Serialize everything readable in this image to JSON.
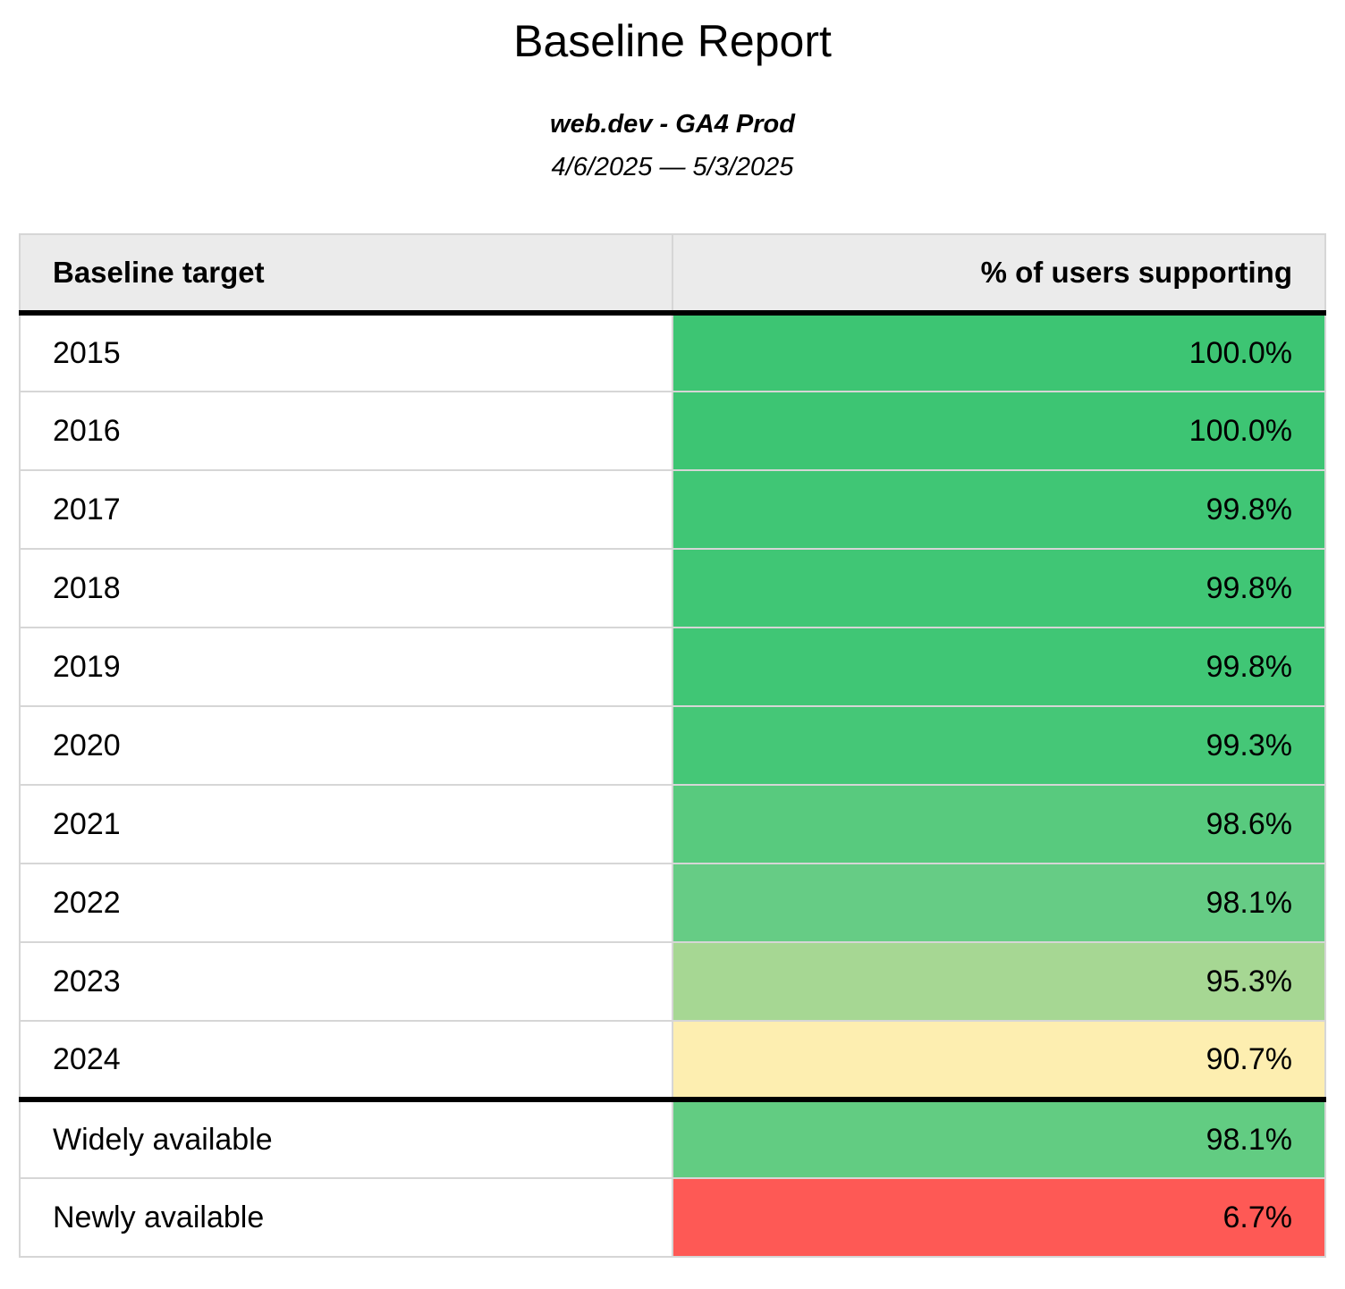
{
  "report": {
    "title": "Baseline Report",
    "property": "web.dev - GA4 Prod",
    "date_range": "4/6/2025 — 5/3/2025"
  },
  "table": {
    "columns": [
      "Baseline target",
      "% of users supporting"
    ],
    "header_bg": "#ebebeb",
    "grid_color": "#d6d6d6",
    "separator_color": "#000000",
    "rows": [
      {
        "target": "2015",
        "value": "100.0%",
        "color": "#3dc573",
        "separator_above": false
      },
      {
        "target": "2016",
        "value": "100.0%",
        "color": "#3dc573",
        "separator_above": false
      },
      {
        "target": "2017",
        "value": "99.8%",
        "color": "#40c675",
        "separator_above": false
      },
      {
        "target": "2018",
        "value": "99.8%",
        "color": "#40c675",
        "separator_above": false
      },
      {
        "target": "2019",
        "value": "99.8%",
        "color": "#40c675",
        "separator_above": false
      },
      {
        "target": "2020",
        "value": "99.3%",
        "color": "#45c777",
        "separator_above": false
      },
      {
        "target": "2021",
        "value": "98.6%",
        "color": "#58ca7e",
        "separator_above": false
      },
      {
        "target": "2022",
        "value": "98.1%",
        "color": "#66cc85",
        "separator_above": false
      },
      {
        "target": "2023",
        "value": "95.3%",
        "color": "#a6d793",
        "separator_above": false
      },
      {
        "target": "2024",
        "value": "90.7%",
        "color": "#fdeeb0",
        "separator_above": false
      },
      {
        "target": "Widely available",
        "value": "98.1%",
        "color": "#62cc82",
        "separator_above": true
      },
      {
        "target": "Newly available",
        "value": "6.7%",
        "color": "#fe5955",
        "separator_above": false
      }
    ]
  }
}
